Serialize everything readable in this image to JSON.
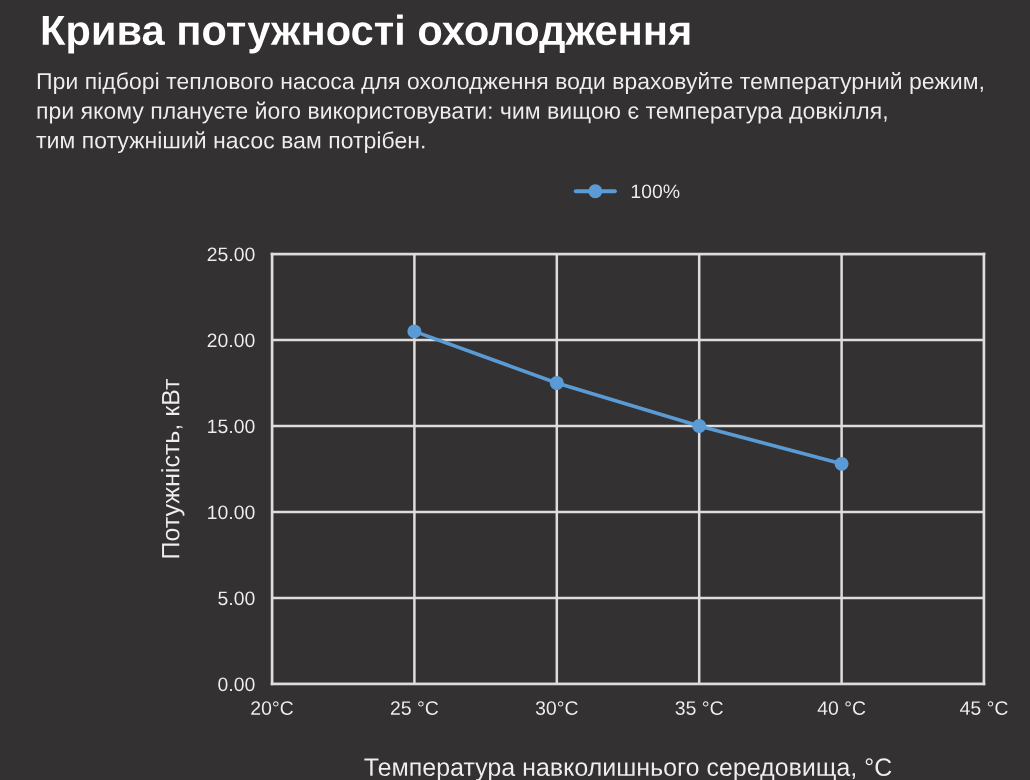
{
  "chart_data": {
    "type": "line",
    "title": "Крива потужності охолодження",
    "subtitle": "При підборі теплового насоса для охолодження води враховуйте температурний режим,\nпри якому плануєте його використовувати: чим вищою є температура довкілля,\nтим потужніший насос вам потрібен.",
    "xlabel": "Температура навколишнього середовища, °C",
    "ylabel": "Потужність, кВт",
    "x": [
      25,
      30,
      35,
      40
    ],
    "series": [
      {
        "name": "100%",
        "color": "#5b9bd5",
        "values": [
          20.5,
          17.5,
          15.0,
          12.8
        ]
      }
    ],
    "xlim": [
      20,
      45
    ],
    "xticks": [
      {
        "value": 20,
        "label": "20°C"
      },
      {
        "value": 25,
        "label": "25 °C"
      },
      {
        "value": 30,
        "label": "30°C"
      },
      {
        "value": 35,
        "label": "35 °C"
      },
      {
        "value": 40,
        "label": "40 °C"
      },
      {
        "value": 45,
        "label": "45 °C"
      }
    ],
    "ylim": [
      0,
      25
    ],
    "yticks": [
      {
        "value": 0,
        "label": "0.00"
      },
      {
        "value": 5,
        "label": "5.00"
      },
      {
        "value": 10,
        "label": "10.00"
      },
      {
        "value": 15,
        "label": "15.00"
      },
      {
        "value": 20,
        "label": "20.00"
      },
      {
        "value": 25,
        "label": "25.00"
      }
    ],
    "grid": true,
    "legend": "top",
    "marker": "circle",
    "line_style": "solid"
  }
}
